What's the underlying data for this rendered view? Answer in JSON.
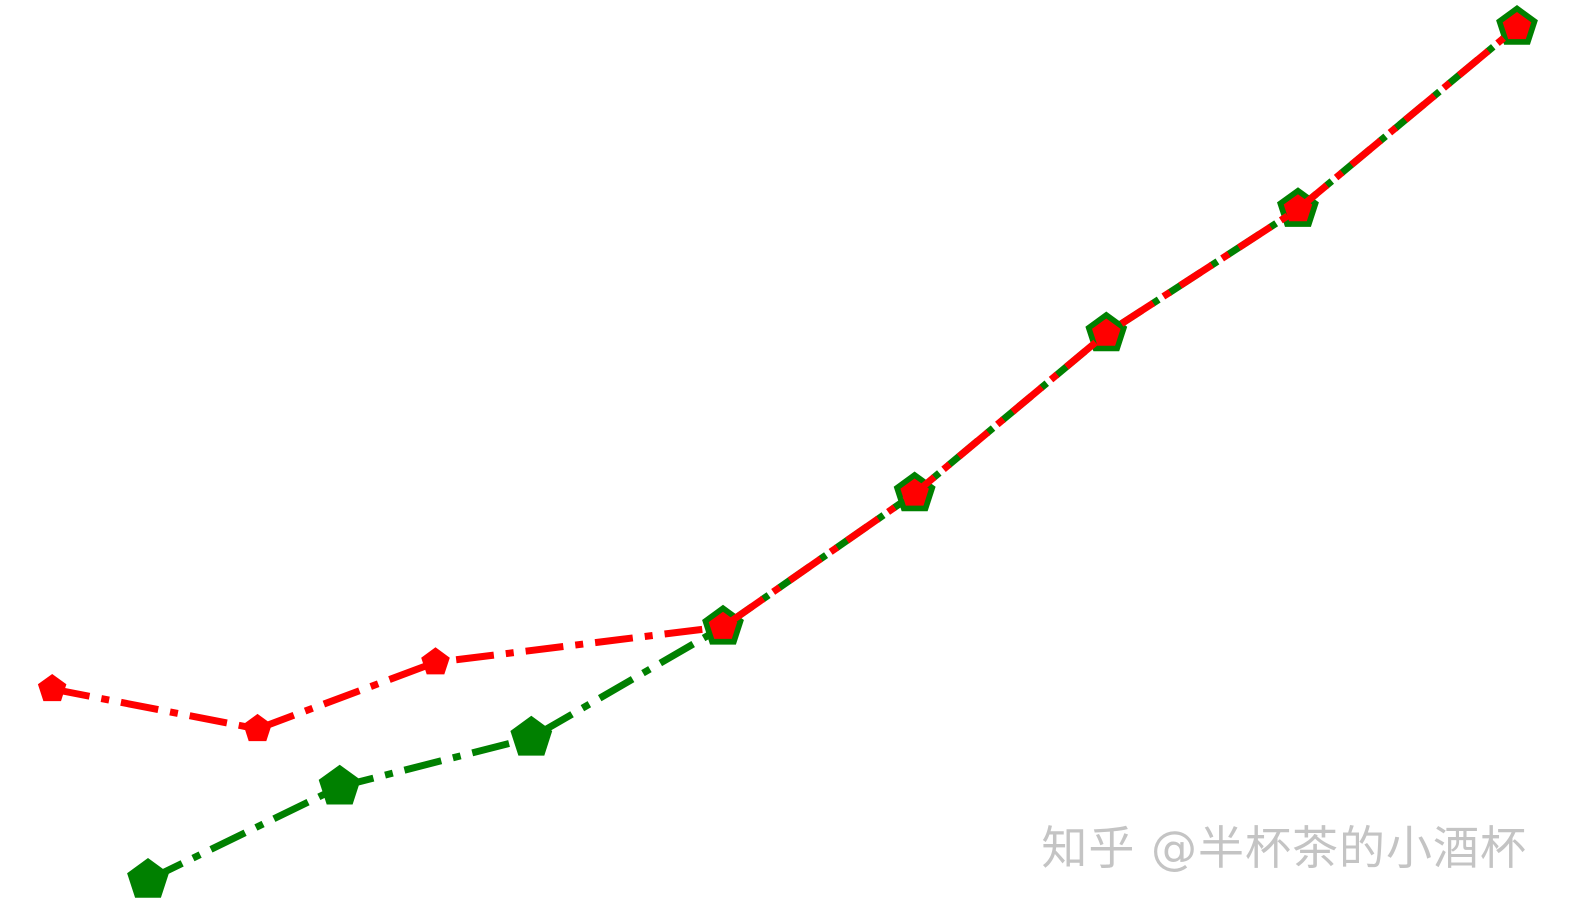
{
  "chart_data": {
    "type": "line",
    "title": "",
    "xlabel": "",
    "ylabel": "",
    "axes_visible": false,
    "grid": false,
    "legend": "none",
    "xlim": [
      -0.1,
      1.05
    ],
    "ylim": [
      0,
      1.0
    ],
    "series": [
      {
        "color": "#008000",
        "line_style": "dash-dot",
        "marker": "pentagon",
        "points": [
          {
            "x": 0.0,
            "y": 0.04
          },
          {
            "x": 0.14,
            "y": 0.145
          },
          {
            "x": 0.28,
            "y": 0.2
          },
          {
            "x": 0.42,
            "y": 0.325
          },
          {
            "x": 0.56,
            "y": 0.475
          },
          {
            "x": 0.7,
            "y": 0.655
          },
          {
            "x": 0.84,
            "y": 0.795
          },
          {
            "x": 1.0,
            "y": 1.0
          }
        ]
      },
      {
        "color": "#ff0000",
        "line_style": "dash-dot",
        "marker": "pentagon",
        "points": [
          {
            "x": -0.07,
            "y": 0.255
          },
          {
            "x": 0.08,
            "y": 0.21
          },
          {
            "x": 0.21,
            "y": 0.285
          },
          {
            "x": 0.42,
            "y": 0.325
          },
          {
            "x": 0.56,
            "y": 0.475
          },
          {
            "x": 0.7,
            "y": 0.655
          },
          {
            "x": 0.84,
            "y": 0.795
          },
          {
            "x": 1.0,
            "y": 1.0
          }
        ]
      }
    ]
  },
  "watermark": "知乎 @半杯茶的小酒杯"
}
